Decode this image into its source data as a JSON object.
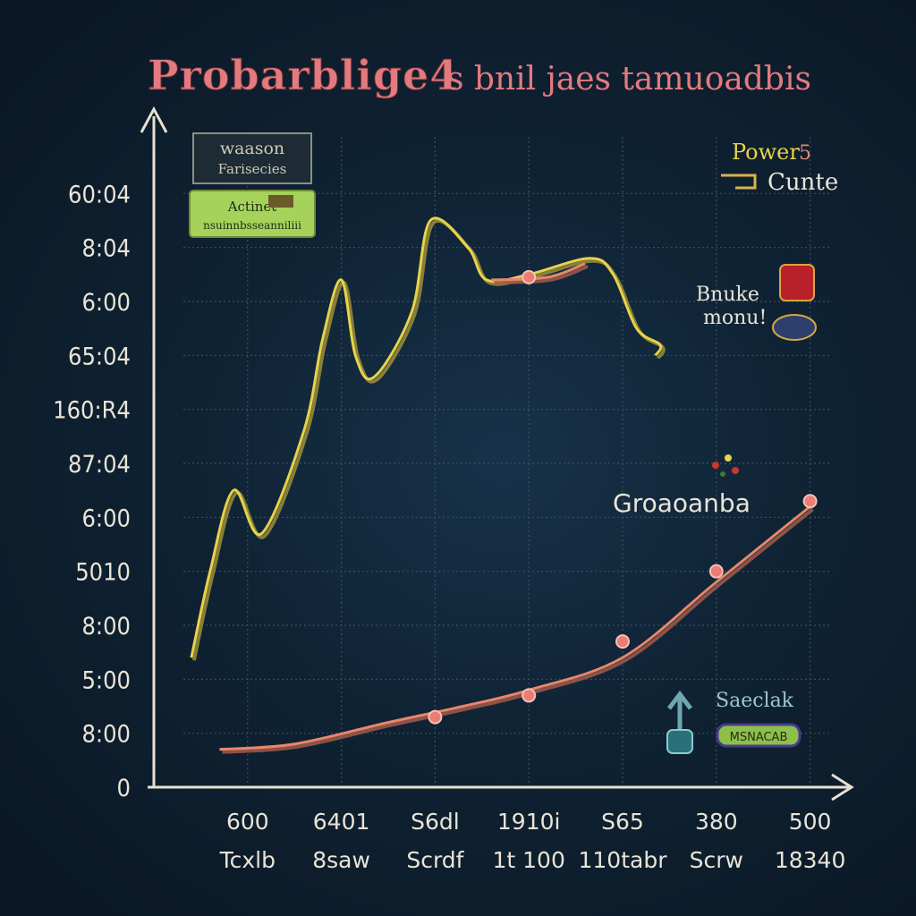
{
  "colors": {
    "background": "#0f2233",
    "grid": "#3c4f5e",
    "axis": "#e6e1d1",
    "series_yellow": "#e8d34a",
    "series_yellow_shadow": "#9c8f3a",
    "series_orange": "#e8876c",
    "marker": "#ec7d74",
    "title": "#e37a7f",
    "legend_green": "#a5d25a"
  },
  "chart_data": {
    "type": "line",
    "title": "Probarblige4",
    "subtitle": "s bnil jaes tamuoadbis",
    "ytick_labels": [
      "60:04",
      "8:04",
      "6:00",
      "65:04",
      "160:R4",
      "87:04",
      "6:00",
      "5010",
      "8:00",
      "5:00",
      "8:00",
      "0"
    ],
    "xtick_labels": [
      "600",
      "6401",
      "S6dl",
      "1910i",
      "S65",
      "380",
      "500"
    ],
    "xtick_sublabels": [
      "Tcxlb",
      "8saw",
      "Scrdf",
      "1t 100",
      "110tabr",
      "Scrw",
      "18340"
    ],
    "xlim": [
      0,
      7.5
    ],
    "ylim": [
      0,
      12
    ],
    "grid": true,
    "series": [
      {
        "color": "#e8d34a",
        "points": [
          [
            0.4,
            2.4
          ],
          [
            0.6,
            4.0
          ],
          [
            0.85,
            5.5
          ],
          [
            1.15,
            4.7
          ],
          [
            1.6,
            6.6
          ],
          [
            1.8,
            8.3
          ],
          [
            2.0,
            9.4
          ],
          [
            2.15,
            8.0
          ],
          [
            2.35,
            7.6
          ],
          [
            2.75,
            8.8
          ],
          [
            2.95,
            10.5
          ],
          [
            3.35,
            10.0
          ],
          [
            3.55,
            9.4
          ],
          [
            4.0,
            9.5
          ],
          [
            4.65,
            9.8
          ],
          [
            4.9,
            9.5
          ],
          [
            5.15,
            8.5
          ],
          [
            5.4,
            8.2
          ],
          [
            5.35,
            8.0
          ]
        ]
      },
      {
        "color": "#e8876c",
        "points": [
          [
            0.7,
            0.7
          ],
          [
            1.5,
            0.8
          ],
          [
            2.5,
            1.2
          ],
          [
            3.3,
            1.5
          ],
          [
            4.0,
            1.8
          ],
          [
            5.0,
            2.4
          ],
          [
            6.0,
            3.8
          ],
          [
            7.0,
            5.2
          ]
        ],
        "markers": [
          [
            3.0,
            1.3
          ],
          [
            4.0,
            1.7
          ],
          [
            5.0,
            2.7
          ],
          [
            6.0,
            4.0
          ],
          [
            7.0,
            5.3
          ]
        ]
      },
      {
        "color": "#e8876c",
        "points": [
          [
            3.6,
            9.4
          ],
          [
            4.2,
            9.45
          ],
          [
            4.6,
            9.7
          ]
        ],
        "markers": [
          [
            4.0,
            9.45
          ]
        ]
      }
    ]
  },
  "legend_left": {
    "box1_line1": "waason",
    "box1_line2": "Farisecies",
    "box2_line1": "Actinet",
    "box2_line2": "nsuinnbsseanniliii"
  },
  "legend_right": {
    "power_label": "Power",
    "power_suffix": "5",
    "curve_label": "Cunte",
    "snake_line1": "Bnuke",
    "snake_line2": "monu!",
    "scatter_label": "Saeclak",
    "green_badge_text": "MSNACAB",
    "annotation": "Groaoanba"
  }
}
